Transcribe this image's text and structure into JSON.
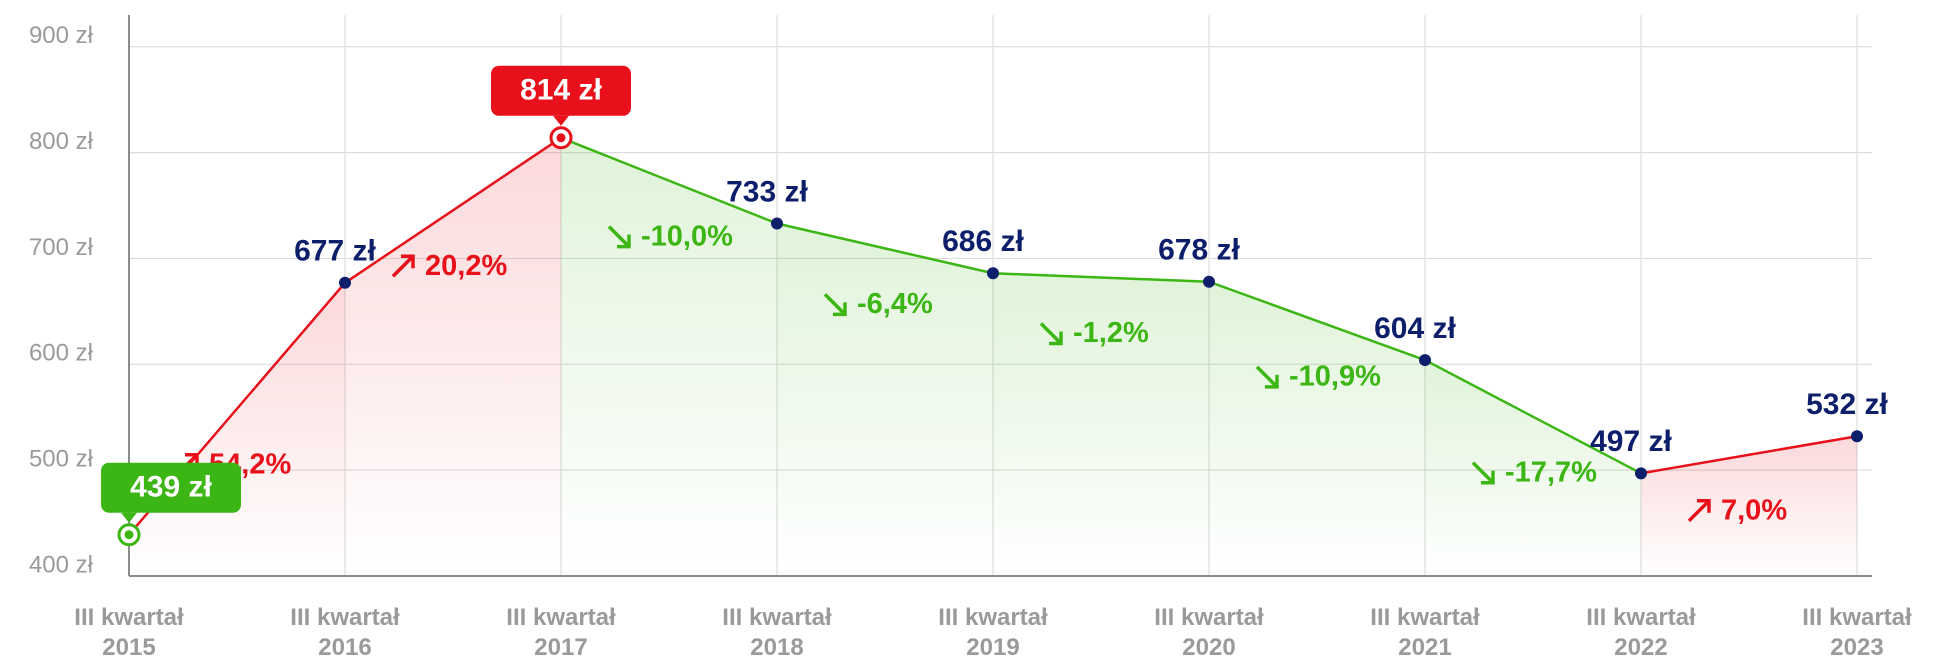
{
  "chart_data": {
    "type": "line",
    "categories": [
      "III kwartał 2015",
      "III kwartał 2016",
      "III kwartał 2017",
      "III kwartał 2018",
      "III kwartał 2019",
      "III kwartał 2020",
      "III kwartał 2021",
      "III kwartał 2022",
      "III kwartał 2023"
    ],
    "values": [
      439,
      677,
      814,
      733,
      686,
      678,
      604,
      497,
      532
    ],
    "value_labels": [
      "439 zł",
      "677 zł",
      "814 zł",
      "733 zł",
      "686 zł",
      "678 zł",
      "604 zł",
      "497 zł",
      "532 zł"
    ],
    "changes": [
      "54,2%",
      "20,2%",
      "-10,0%",
      "-6,4%",
      "-1,2%",
      "-10,9%",
      "-17,7%",
      "7,0%"
    ],
    "rise_color": "#e8101a",
    "fall_color": "#3cb614",
    "label_color": "#0d1f6b",
    "ylim": [
      400,
      930
    ],
    "yticks": [
      {
        "value": 400,
        "label": "400 zł"
      },
      {
        "value": 500,
        "label": "500 zł"
      },
      {
        "value": 600,
        "label": "600 zł"
      },
      {
        "value": 700,
        "label": "700 zł"
      },
      {
        "value": 800,
        "label": "800 zł"
      },
      {
        "value": 900,
        "label": "900 zł"
      }
    ],
    "grid": true
  }
}
